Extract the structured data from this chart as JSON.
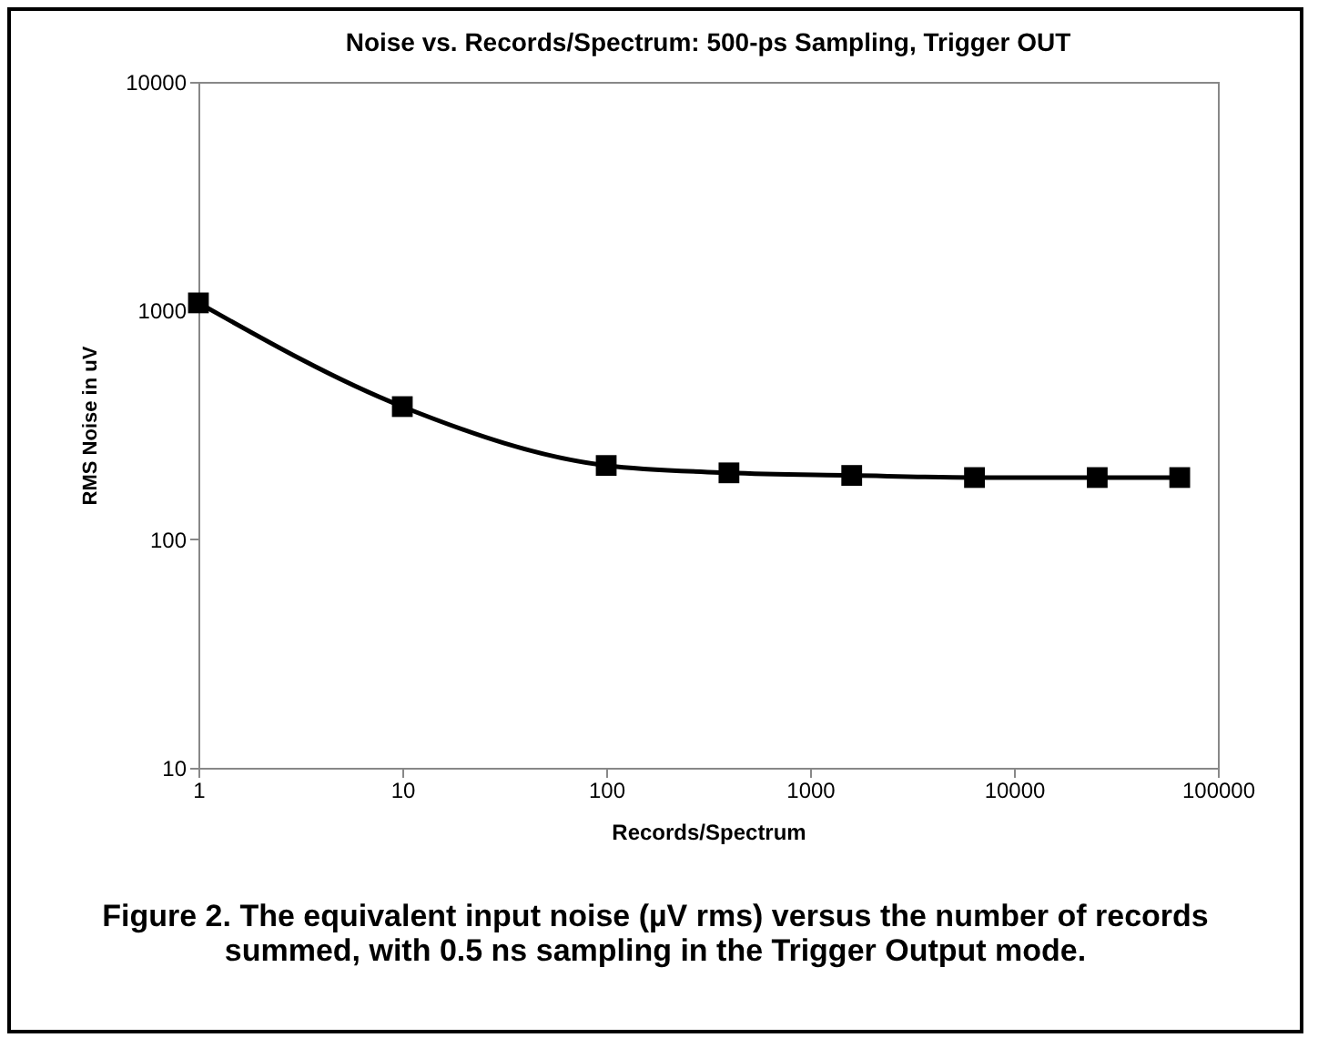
{
  "chart_data": {
    "type": "line",
    "title": "Noise vs. Records/Spectrum: 500-ps Sampling, Trigger OUT",
    "xlabel": "Records/Spectrum",
    "ylabel": "RMS Noise in uV",
    "x": [
      1,
      10,
      100,
      400,
      1600,
      6400,
      25600,
      65000
    ],
    "series": [
      {
        "color": "#000000",
        "values": [
          1080,
          380,
          210,
          195,
          190,
          186,
          186,
          186
        ]
      }
    ],
    "log": "xy",
    "xlim": [
      1,
      100000
    ],
    "xticks": [
      1,
      10,
      100,
      1000,
      10000,
      100000
    ],
    "ylim": [
      10,
      10000
    ],
    "yticks": [
      10,
      100,
      1000,
      10000
    ],
    "grid": false,
    "marker": "square",
    "line_style": "solid",
    "annotations": [
      "Figure 2. The equivalent input noise (µV rms) versus the number of records summed, with 0.5 ns sampling in the Trigger Output mode."
    ]
  }
}
